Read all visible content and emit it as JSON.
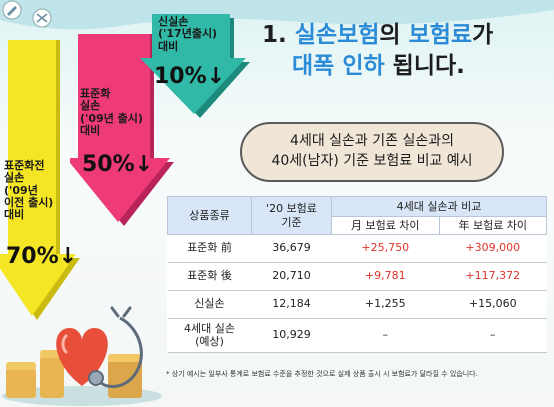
{
  "headline": {
    "number": "1.",
    "part1_accent": "실손보험",
    "part1_mid": "의",
    "part1_accent2": "보험료",
    "part1_end": "가",
    "part2_accent": "대폭 인하",
    "part2_end": "됩니다."
  },
  "arrows": [
    {
      "label": "표준화전\n실손\n('09년\n이전 출시)\n대비",
      "percent": "70%↓",
      "color": "#f5e625",
      "reduction": 70
    },
    {
      "label": "표준화\n실손\n('09년 출시)\n대비",
      "percent": "50%↓",
      "color": "#ef3a78",
      "reduction": 50
    },
    {
      "label": "신실손\n('17년출시)\n대비",
      "percent": "10%↓",
      "color": "#2fb9a6",
      "reduction": 10
    }
  ],
  "subtitle": {
    "line1": "4세대 실손과 기존 실손과의",
    "line2": "40세(남자) 기준 보험료 비교 예시"
  },
  "table": {
    "headers": {
      "type": "상품종류",
      "premium": "'20 보험료\n기준",
      "compare_group": "4세대 실손과 비교",
      "monthly": "月 보험료 차이",
      "yearly": "年 보험료 차이"
    },
    "rows": [
      {
        "type": "표준화 前",
        "premium": "36,679",
        "monthly": "+25,750",
        "yearly": "+309,000",
        "highlight": true
      },
      {
        "type": "표준화 後",
        "premium": "20,710",
        "monthly": "+9,781",
        "yearly": "+117,372",
        "highlight": true
      },
      {
        "type": "신실손",
        "premium": "12,184",
        "monthly": "+1,255",
        "yearly": "+15,060",
        "highlight": false
      },
      {
        "type": "4세대 실손\n(예상)",
        "premium": "10,929",
        "monthly": "–",
        "yearly": "–",
        "highlight": false
      }
    ]
  },
  "footnote": "* 상기 예시는 일부사 통계로 보험료 수준을 추정한 것으로 실제 상품 출시 시 보험료가 달라질 수 있습니다.",
  "colors": {
    "accent": "#2b8bd6",
    "increase": "#e0342a",
    "table_header": "#d9e6f7"
  },
  "icons": [
    "heart-icon",
    "stethoscope-icon",
    "coin-stack-icon",
    "pencil-icon",
    "scissors-icon"
  ]
}
